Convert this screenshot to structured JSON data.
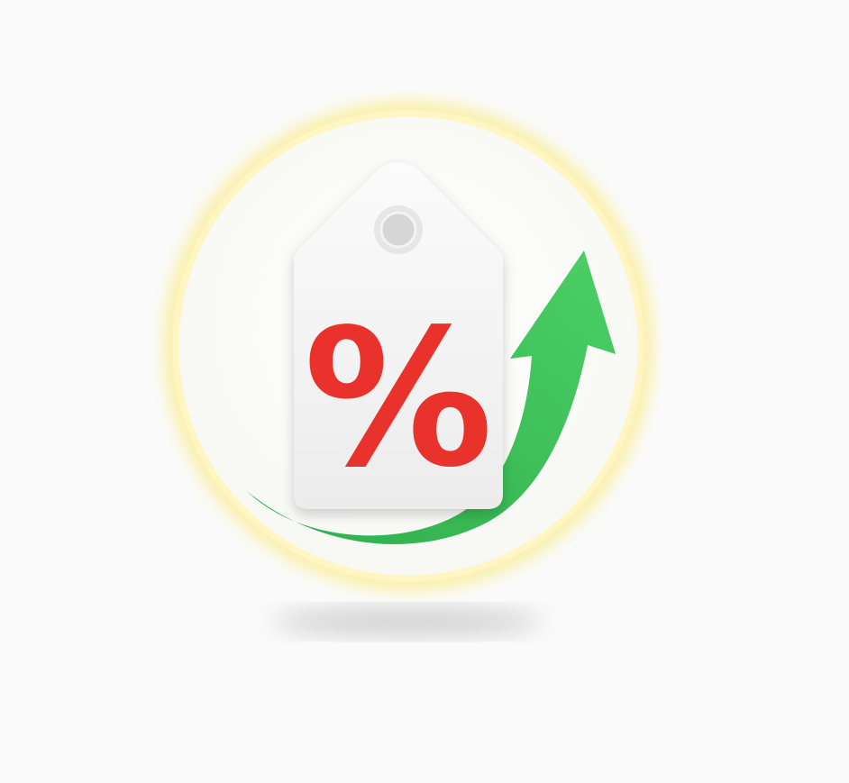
{
  "icon": {
    "name": "price-increase-icon",
    "tag_symbol": "%",
    "colors": {
      "background": "#fafafa",
      "ring_glow": "#fdf3a0",
      "ring": "#ffffff",
      "arrow": "#3fbf5a",
      "tag": "#f4f4f4",
      "tag_hole": "#d9d9d9",
      "symbol": "#e8322b"
    }
  }
}
